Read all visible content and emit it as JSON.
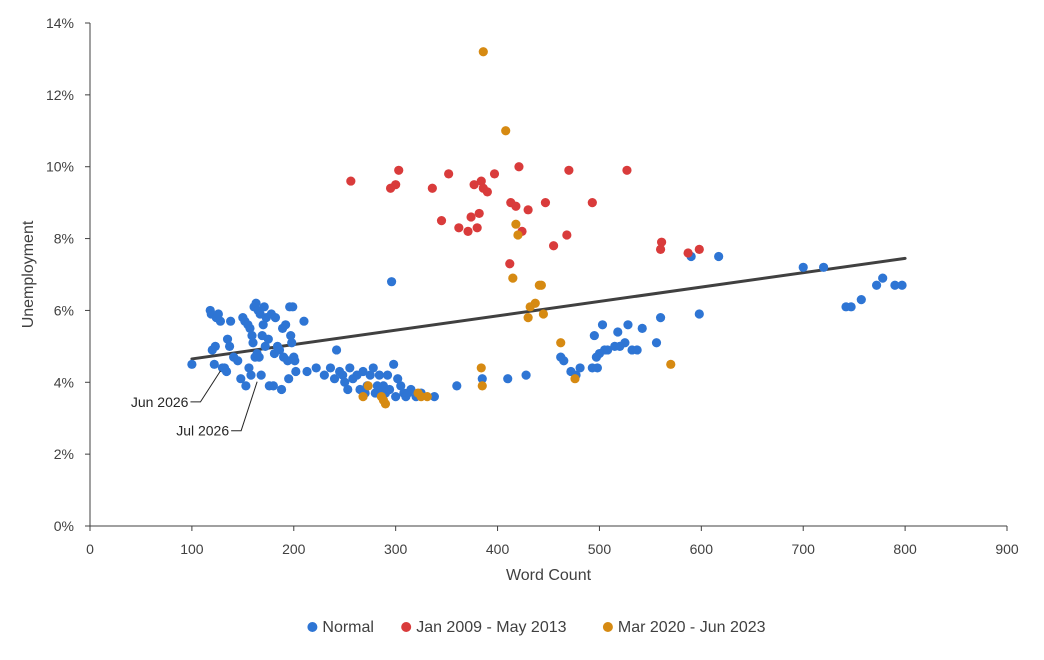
{
  "chart_data": {
    "type": "scatter",
    "title": "",
    "xlabel": "Word Count",
    "ylabel": "Unemployment",
    "xlim": [
      0,
      900
    ],
    "ylim": [
      0,
      14
    ],
    "x_ticks": [
      0,
      100,
      200,
      300,
      400,
      500,
      600,
      700,
      800,
      900
    ],
    "y_ticks": [
      0,
      2,
      4,
      6,
      8,
      10,
      12,
      14
    ],
    "y_tick_labels": [
      "0%",
      "2%",
      "4%",
      "6%",
      "8%",
      "10%",
      "12%",
      "14%"
    ],
    "grid": false,
    "legend_position": "bottom",
    "series": [
      {
        "name": "Normal",
        "color": "#2E75D4",
        "points": [
          [
            100,
            4.5
          ],
          [
            118,
            6.0
          ],
          [
            119,
            5.9
          ],
          [
            120,
            4.9
          ],
          [
            122,
            4.5
          ],
          [
            123,
            5.0
          ],
          [
            124,
            5.8
          ],
          [
            126,
            5.9
          ],
          [
            128,
            5.7
          ],
          [
            130,
            4.4
          ],
          [
            132,
            4.4
          ],
          [
            134,
            4.3
          ],
          [
            135,
            5.2
          ],
          [
            137,
            5.0
          ],
          [
            138,
            5.7
          ],
          [
            141,
            4.7
          ],
          [
            145,
            4.6
          ],
          [
            148,
            4.1
          ],
          [
            150,
            5.8
          ],
          [
            152,
            5.7
          ],
          [
            153,
            3.9
          ],
          [
            155,
            5.6
          ],
          [
            156,
            4.4
          ],
          [
            157,
            5.5
          ],
          [
            158,
            4.2
          ],
          [
            159,
            5.3
          ],
          [
            160,
            5.1
          ],
          [
            161,
            6.1
          ],
          [
            162,
            4.7
          ],
          [
            163,
            6.2
          ],
          [
            164,
            4.8
          ],
          [
            165,
            6.0
          ],
          [
            166,
            4.7
          ],
          [
            167,
            5.9
          ],
          [
            168,
            4.2
          ],
          [
            169,
            5.3
          ],
          [
            170,
            5.6
          ],
          [
            171,
            6.1
          ],
          [
            172,
            5.0
          ],
          [
            173,
            5.8
          ],
          [
            175,
            5.2
          ],
          [
            176,
            3.9
          ],
          [
            178,
            5.9
          ],
          [
            180,
            3.9
          ],
          [
            181,
            4.8
          ],
          [
            182,
            5.8
          ],
          [
            184,
            5.0
          ],
          [
            186,
            4.9
          ],
          [
            188,
            3.8
          ],
          [
            189,
            5.5
          ],
          [
            190,
            4.7
          ],
          [
            192,
            5.6
          ],
          [
            194,
            4.6
          ],
          [
            195,
            4.1
          ],
          [
            196,
            6.1
          ],
          [
            197,
            5.3
          ],
          [
            198,
            5.1
          ],
          [
            199,
            6.1
          ],
          [
            200,
            4.7
          ],
          [
            201,
            4.6
          ],
          [
            202,
            4.3
          ],
          [
            210,
            5.7
          ],
          [
            213,
            4.3
          ],
          [
            222,
            4.4
          ],
          [
            230,
            4.2
          ],
          [
            236,
            4.4
          ],
          [
            240,
            4.1
          ],
          [
            242,
            4.9
          ],
          [
            245,
            4.3
          ],
          [
            248,
            4.2
          ],
          [
            250,
            4.0
          ],
          [
            253,
            3.8
          ],
          [
            255,
            4.4
          ],
          [
            258,
            4.1
          ],
          [
            262,
            4.2
          ],
          [
            265,
            3.8
          ],
          [
            268,
            4.3
          ],
          [
            270,
            3.7
          ],
          [
            272,
            3.9
          ],
          [
            275,
            4.2
          ],
          [
            278,
            4.4
          ],
          [
            280,
            3.7
          ],
          [
            282,
            3.9
          ],
          [
            284,
            4.2
          ],
          [
            286,
            3.8
          ],
          [
            288,
            3.9
          ],
          [
            290,
            3.7
          ],
          [
            292,
            4.2
          ],
          [
            294,
            3.8
          ],
          [
            296,
            6.8
          ],
          [
            298,
            4.5
          ],
          [
            300,
            3.6
          ],
          [
            302,
            4.1
          ],
          [
            305,
            3.9
          ],
          [
            308,
            3.7
          ],
          [
            310,
            3.6
          ],
          [
            312,
            3.7
          ],
          [
            315,
            3.8
          ],
          [
            320,
            3.6
          ],
          [
            325,
            3.7
          ],
          [
            338,
            3.6
          ],
          [
            360,
            3.9
          ],
          [
            385,
            4.1
          ],
          [
            410,
            4.1
          ],
          [
            428,
            4.2
          ],
          [
            462,
            4.7
          ],
          [
            465,
            4.6
          ],
          [
            472,
            4.3
          ],
          [
            477,
            4.2
          ],
          [
            481,
            4.4
          ],
          [
            493,
            4.4
          ],
          [
            495,
            5.3
          ],
          [
            497,
            4.7
          ],
          [
            498,
            4.4
          ],
          [
            500,
            4.8
          ],
          [
            503,
            5.6
          ],
          [
            505,
            4.9
          ],
          [
            508,
            4.9
          ],
          [
            515,
            5.0
          ],
          [
            518,
            5.4
          ],
          [
            520,
            5.0
          ],
          [
            525,
            5.1
          ],
          [
            528,
            5.6
          ],
          [
            532,
            4.9
          ],
          [
            537,
            4.9
          ],
          [
            542,
            5.5
          ],
          [
            556,
            5.1
          ],
          [
            560,
            5.8
          ],
          [
            590,
            7.5
          ],
          [
            598,
            5.9
          ],
          [
            617,
            7.5
          ],
          [
            700,
            7.2
          ],
          [
            720,
            7.2
          ],
          [
            742,
            6.1
          ],
          [
            747,
            6.1
          ],
          [
            757,
            6.3
          ],
          [
            772,
            6.7
          ],
          [
            778,
            6.9
          ],
          [
            790,
            6.7
          ],
          [
            797,
            6.7
          ]
        ]
      },
      {
        "name": "Jan 2009 - May 2013",
        "color": "#D93B3B",
        "points": [
          [
            256,
            9.6
          ],
          [
            295,
            9.4
          ],
          [
            300,
            9.5
          ],
          [
            303,
            9.9
          ],
          [
            336,
            9.4
          ],
          [
            345,
            8.5
          ],
          [
            352,
            9.8
          ],
          [
            362,
            8.3
          ],
          [
            371,
            8.2
          ],
          [
            374,
            8.6
          ],
          [
            377,
            9.5
          ],
          [
            380,
            8.3
          ],
          [
            382,
            8.7
          ],
          [
            384,
            9.6
          ],
          [
            386,
            9.4
          ],
          [
            390,
            9.3
          ],
          [
            397,
            9.8
          ],
          [
            412,
            7.3
          ],
          [
            413,
            9.0
          ],
          [
            418,
            8.9
          ],
          [
            421,
            10.0
          ],
          [
            424,
            8.2
          ],
          [
            430,
            8.8
          ],
          [
            447,
            9.0
          ],
          [
            455,
            7.8
          ],
          [
            468,
            8.1
          ],
          [
            470,
            9.9
          ],
          [
            493,
            9.0
          ],
          [
            527,
            9.9
          ],
          [
            560,
            7.7
          ],
          [
            561,
            7.9
          ],
          [
            587,
            7.6
          ],
          [
            598,
            7.7
          ]
        ]
      },
      {
        "name": "Mar 2020 - Jun 2023",
        "color": "#D68A12",
        "points": [
          [
            386,
            13.2
          ],
          [
            408,
            11.0
          ],
          [
            384,
            4.4
          ],
          [
            385,
            3.9
          ],
          [
            415,
            6.9
          ],
          [
            418,
            8.4
          ],
          [
            420,
            8.1
          ],
          [
            430,
            5.8
          ],
          [
            432,
            6.1
          ],
          [
            437,
            6.2
          ],
          [
            441,
            6.7
          ],
          [
            443,
            6.7
          ],
          [
            445,
            5.9
          ],
          [
            462,
            5.1
          ],
          [
            476,
            4.1
          ],
          [
            570,
            4.5
          ],
          [
            268,
            3.6
          ],
          [
            273,
            3.9
          ],
          [
            286,
            3.6
          ],
          [
            288,
            3.5
          ],
          [
            290,
            3.4
          ],
          [
            322,
            3.7
          ],
          [
            325,
            3.6
          ],
          [
            331,
            3.6
          ]
        ]
      }
    ],
    "trendline": {
      "x": [
        100,
        800
      ],
      "y": [
        4.65,
        7.45
      ],
      "color": "#404040"
    },
    "annotations": [
      {
        "text": "Jun 2026",
        "point": [
          130,
          4.4
        ]
      },
      {
        "text": "Jul 2026",
        "point": [
          166,
          4.1
        ]
      }
    ]
  }
}
